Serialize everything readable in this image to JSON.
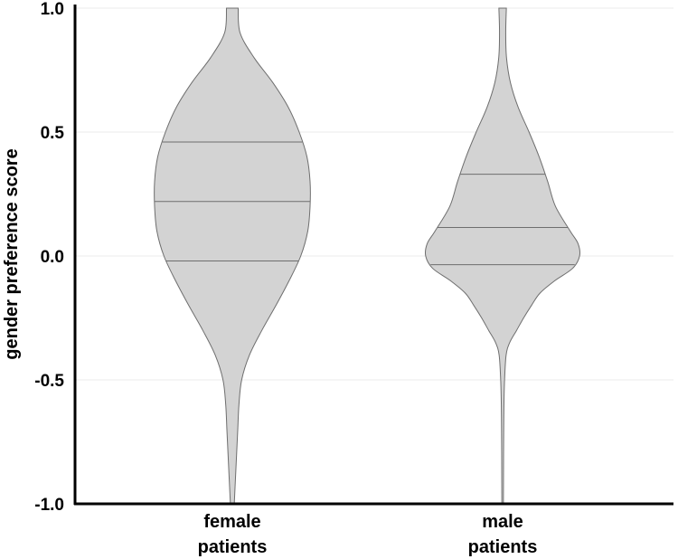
{
  "chart_data": {
    "type": "violin",
    "title": "",
    "xlabel": "",
    "ylabel": "gender preference score",
    "ylim": [
      -1.0,
      1.0
    ],
    "yticks": [
      1.0,
      0.5,
      0.0,
      -0.5,
      -1.0
    ],
    "ytick_labels": [
      "1.0",
      "0.5",
      "0.0",
      "-0.5",
      "-1.0"
    ],
    "grid": true,
    "fill_color": "#d3d3d3",
    "edge_color": "#6e6e6e",
    "categories": [
      {
        "label_lines": [
          "female",
          "patients"
        ],
        "quartiles": [
          -0.02,
          0.22,
          0.46
        ],
        "density_profile": [
          [
            1.0,
            0.075
          ],
          [
            0.9,
            0.1
          ],
          [
            0.8,
            0.28
          ],
          [
            0.7,
            0.52
          ],
          [
            0.6,
            0.72
          ],
          [
            0.5,
            0.86
          ],
          [
            0.4,
            0.96
          ],
          [
            0.3,
            1.0
          ],
          [
            0.2,
            1.0
          ],
          [
            0.1,
            0.97
          ],
          [
            0.0,
            0.88
          ],
          [
            -0.1,
            0.73
          ],
          [
            -0.2,
            0.56
          ],
          [
            -0.3,
            0.38
          ],
          [
            -0.4,
            0.22
          ],
          [
            -0.5,
            0.12
          ],
          [
            -0.6,
            0.085
          ],
          [
            -0.7,
            0.07
          ],
          [
            -0.8,
            0.055
          ],
          [
            -0.9,
            0.04
          ],
          [
            -1.0,
            0.025
          ]
        ]
      },
      {
        "label_lines": [
          "male",
          "patients"
        ],
        "quartiles": [
          -0.035,
          0.115,
          0.33
        ],
        "density_profile": [
          [
            1.0,
            0.048
          ],
          [
            0.9,
            0.04
          ],
          [
            0.8,
            0.05
          ],
          [
            0.7,
            0.1
          ],
          [
            0.6,
            0.2
          ],
          [
            0.5,
            0.34
          ],
          [
            0.4,
            0.47
          ],
          [
            0.3,
            0.58
          ],
          [
            0.2,
            0.68
          ],
          [
            0.1,
            0.87
          ],
          [
            0.05,
            0.97
          ],
          [
            0.0,
            0.99
          ],
          [
            -0.05,
            0.9
          ],
          [
            -0.1,
            0.67
          ],
          [
            -0.15,
            0.48
          ],
          [
            -0.2,
            0.37
          ],
          [
            -0.25,
            0.27
          ],
          [
            -0.3,
            0.18
          ],
          [
            -0.35,
            0.09
          ],
          [
            -0.4,
            0.045
          ],
          [
            -0.5,
            0.025
          ],
          [
            -0.6,
            0.017
          ],
          [
            -0.7,
            0.014
          ],
          [
            -0.8,
            0.012
          ],
          [
            -0.9,
            0.011
          ],
          [
            -1.0,
            0.01
          ]
        ]
      }
    ]
  }
}
